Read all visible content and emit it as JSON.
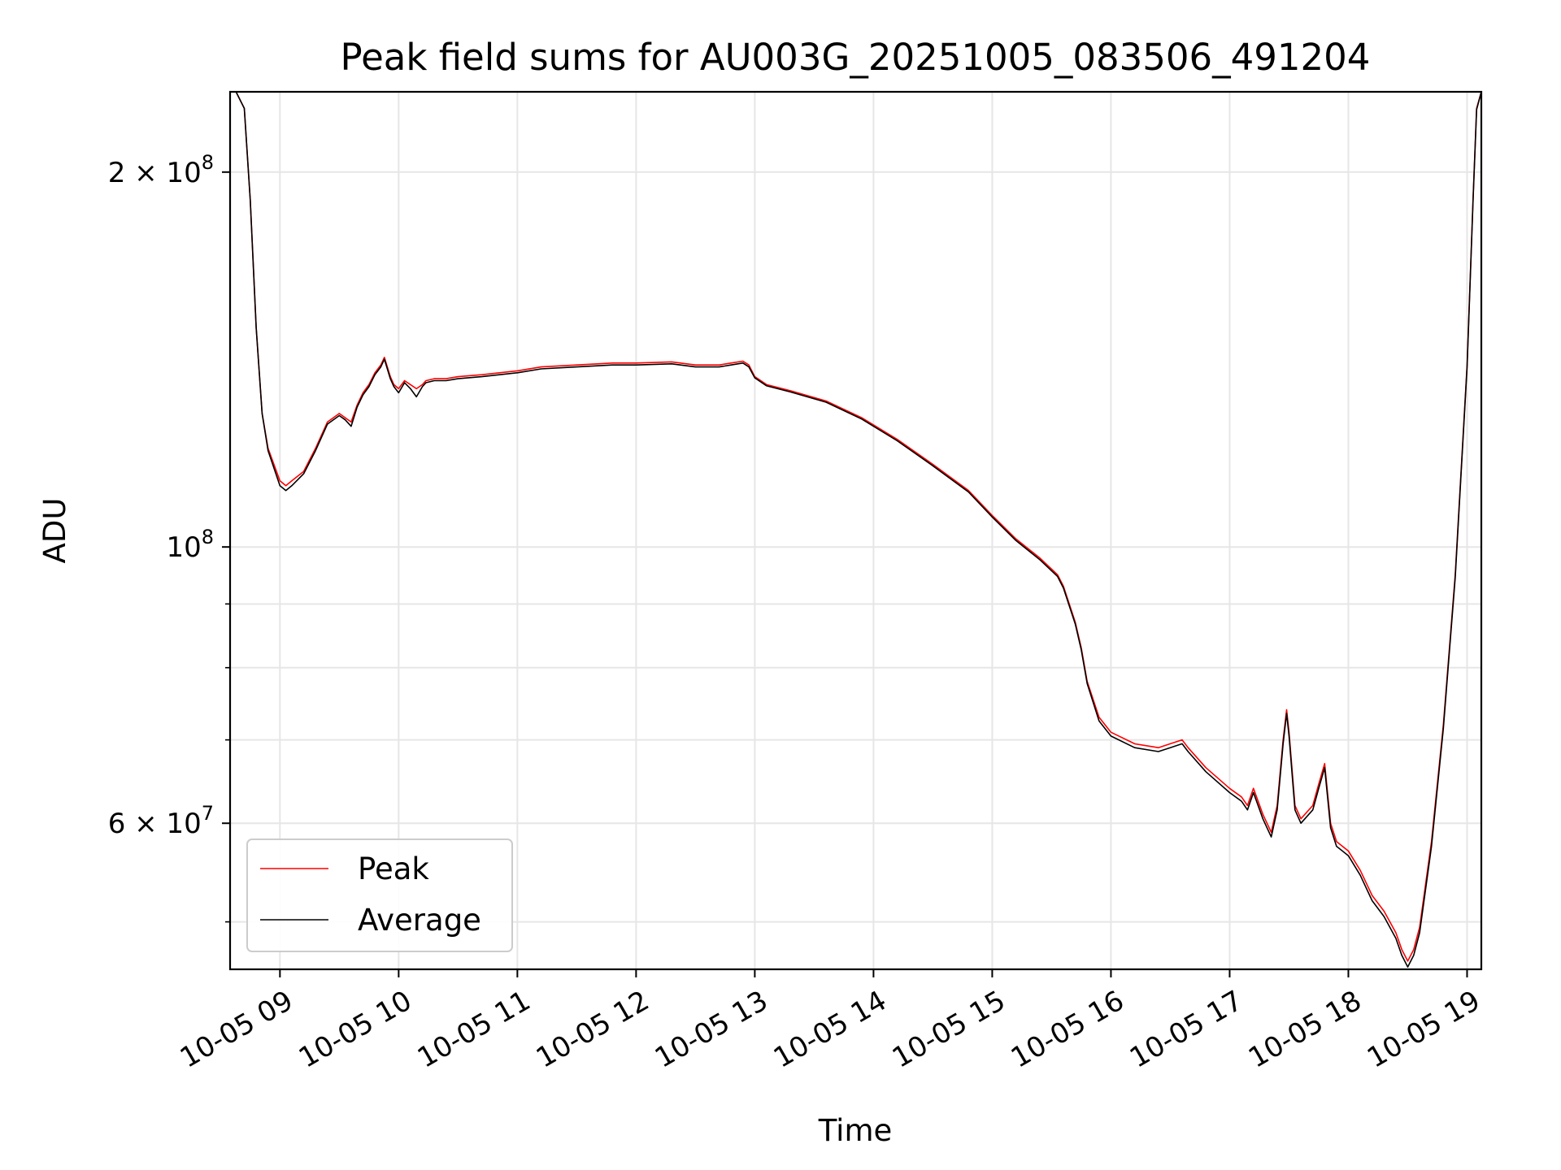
{
  "chart_data": {
    "type": "line",
    "title": "Peak field sums for AU003G_20251005_083506_491204",
    "xlabel": "Time",
    "ylabel": "ADU",
    "yscale": "log",
    "ylim": [
      45800000,
      232000000
    ],
    "xlim": [
      8.58,
      19.12
    ],
    "x_unit": "hours of 2025-10-05",
    "grid": true,
    "legend_location": "lower-left",
    "x_ticks": [
      {
        "value": 9,
        "label": "10-05 09"
      },
      {
        "value": 10,
        "label": "10-05 10"
      },
      {
        "value": 11,
        "label": "10-05 11"
      },
      {
        "value": 12,
        "label": "10-05 12"
      },
      {
        "value": 13,
        "label": "10-05 13"
      },
      {
        "value": 14,
        "label": "10-05 14"
      },
      {
        "value": 15,
        "label": "10-05 15"
      },
      {
        "value": 16,
        "label": "10-05 16"
      },
      {
        "value": 17,
        "label": "10-05 17"
      },
      {
        "value": 18,
        "label": "10-05 18"
      },
      {
        "value": 19,
        "label": "10-05 19"
      }
    ],
    "y_major_ticks": [
      {
        "value": 200000000,
        "mantissa": "2 × 10",
        "exponent": "8"
      },
      {
        "value": 100000000,
        "mantissa": "10",
        "exponent": "8"
      },
      {
        "value": 60000000,
        "mantissa": "6 × 10",
        "exponent": "7"
      }
    ],
    "y_minor_ticks": [
      50000000,
      70000000,
      80000000,
      90000000
    ],
    "series": [
      {
        "name": "Peak",
        "color": "#ff0000",
        "x": [
          8.63,
          8.7,
          8.75,
          8.8,
          8.85,
          8.9,
          9.0,
          9.05,
          9.1,
          9.2,
          9.3,
          9.4,
          9.5,
          9.55,
          9.6,
          9.65,
          9.7,
          9.75,
          9.8,
          9.85,
          9.88,
          9.93,
          9.96,
          10.0,
          10.05,
          10.1,
          10.15,
          10.2,
          10.23,
          10.3,
          10.4,
          10.5,
          10.7,
          11.0,
          11.2,
          11.5,
          11.8,
          12.0,
          12.3,
          12.5,
          12.7,
          12.8,
          12.9,
          12.95,
          13.0,
          13.1,
          13.3,
          13.6,
          13.9,
          14.2,
          14.5,
          14.8,
          15.0,
          15.2,
          15.4,
          15.55,
          15.6,
          15.7,
          15.75,
          15.8,
          15.9,
          16.0,
          16.2,
          16.4,
          16.5,
          16.6,
          16.65,
          16.8,
          17.0,
          17.1,
          17.15,
          17.2,
          17.28,
          17.35,
          17.4,
          17.45,
          17.48,
          17.5,
          17.55,
          17.6,
          17.7,
          17.75,
          17.8,
          17.85,
          17.9,
          18.0,
          18.1,
          18.2,
          18.3,
          18.4,
          18.45,
          18.5,
          18.55,
          18.6,
          18.7,
          18.8,
          18.9,
          19.0,
          19.05,
          19.08,
          19.12
        ],
        "values": [
          232000000,
          225000000,
          190000000,
          150000000,
          128000000,
          120000000,
          113000000,
          112000000,
          113000000,
          115000000,
          120000000,
          126000000,
          128000000,
          127000000,
          126000000,
          130000000,
          133000000,
          135000000,
          138000000,
          140000000,
          142000000,
          137000000,
          135000000,
          134000000,
          136000000,
          135000000,
          134000000,
          135000000,
          136000000,
          136500000,
          136500000,
          137000000,
          137500000,
          138500000,
          139500000,
          140000000,
          140500000,
          140500000,
          140800000,
          140000000,
          140000000,
          140500000,
          141000000,
          140000000,
          137000000,
          135000000,
          133500000,
          131000000,
          127000000,
          122000000,
          116500000,
          111000000,
          106000000,
          101500000,
          98000000,
          95000000,
          93000000,
          87000000,
          83000000,
          78000000,
          73000000,
          71000000,
          69500000,
          69000000,
          69500000,
          70000000,
          69000000,
          66500000,
          64000000,
          63000000,
          62000000,
          64000000,
          61000000,
          59000000,
          62000000,
          70000000,
          74000000,
          71000000,
          62000000,
          60500000,
          62000000,
          64500000,
          67000000,
          60000000,
          58000000,
          57000000,
          55000000,
          52500000,
          51000000,
          49000000,
          47500000,
          46500000,
          47500000,
          49500000,
          58000000,
          72000000,
          95000000,
          140000000,
          190000000,
          225000000,
          232000000
        ]
      },
      {
        "name": "Average",
        "color": "#000000",
        "x": [
          8.63,
          8.7,
          8.75,
          8.8,
          8.85,
          8.9,
          9.0,
          9.05,
          9.1,
          9.2,
          9.3,
          9.4,
          9.5,
          9.55,
          9.6,
          9.65,
          9.7,
          9.75,
          9.8,
          9.85,
          9.88,
          9.93,
          9.96,
          10.0,
          10.05,
          10.1,
          10.15,
          10.2,
          10.23,
          10.3,
          10.4,
          10.5,
          10.7,
          11.0,
          11.2,
          11.5,
          11.8,
          12.0,
          12.3,
          12.5,
          12.7,
          12.8,
          12.9,
          12.95,
          13.0,
          13.1,
          13.3,
          13.6,
          13.9,
          14.2,
          14.5,
          14.8,
          15.0,
          15.2,
          15.4,
          15.55,
          15.6,
          15.7,
          15.75,
          15.8,
          15.9,
          16.0,
          16.2,
          16.4,
          16.5,
          16.6,
          16.65,
          16.8,
          17.0,
          17.1,
          17.15,
          17.2,
          17.28,
          17.35,
          17.4,
          17.45,
          17.48,
          17.5,
          17.55,
          17.6,
          17.7,
          17.75,
          17.8,
          17.85,
          17.9,
          18.0,
          18.1,
          18.2,
          18.3,
          18.4,
          18.45,
          18.5,
          18.55,
          18.6,
          18.7,
          18.8,
          18.9,
          19.0,
          19.05,
          19.08,
          19.12
        ],
        "values": [
          232000000,
          225000000,
          190000000,
          150000000,
          128000000,
          119500000,
          112000000,
          111000000,
          112000000,
          114500000,
          119500000,
          125500000,
          127500000,
          126500000,
          125000000,
          129500000,
          132500000,
          134500000,
          137500000,
          139500000,
          141500000,
          136500000,
          134500000,
          133000000,
          135500000,
          134000000,
          132000000,
          134500000,
          135500000,
          136000000,
          136000000,
          136500000,
          137000000,
          138000000,
          139000000,
          139500000,
          140000000,
          140000000,
          140300000,
          139500000,
          139500000,
          140000000,
          140500000,
          139500000,
          136700000,
          134700000,
          133200000,
          130700000,
          126700000,
          121700000,
          116200000,
          110700000,
          105700000,
          101200000,
          97700000,
          94700000,
          92700000,
          86700000,
          82700000,
          77700000,
          72500000,
          70500000,
          69000000,
          68500000,
          69000000,
          69500000,
          68500000,
          66000000,
          63500000,
          62500000,
          61500000,
          63500000,
          60500000,
          58500000,
          61500000,
          69500000,
          73500000,
          70500000,
          61500000,
          60000000,
          61500000,
          64000000,
          66500000,
          59500000,
          57500000,
          56500000,
          54500000,
          52000000,
          50500000,
          48500000,
          47000000,
          46000000,
          47000000,
          49000000,
          57500000,
          71500000,
          94500000,
          139500000,
          189500000,
          224500000,
          232000000
        ]
      }
    ]
  }
}
